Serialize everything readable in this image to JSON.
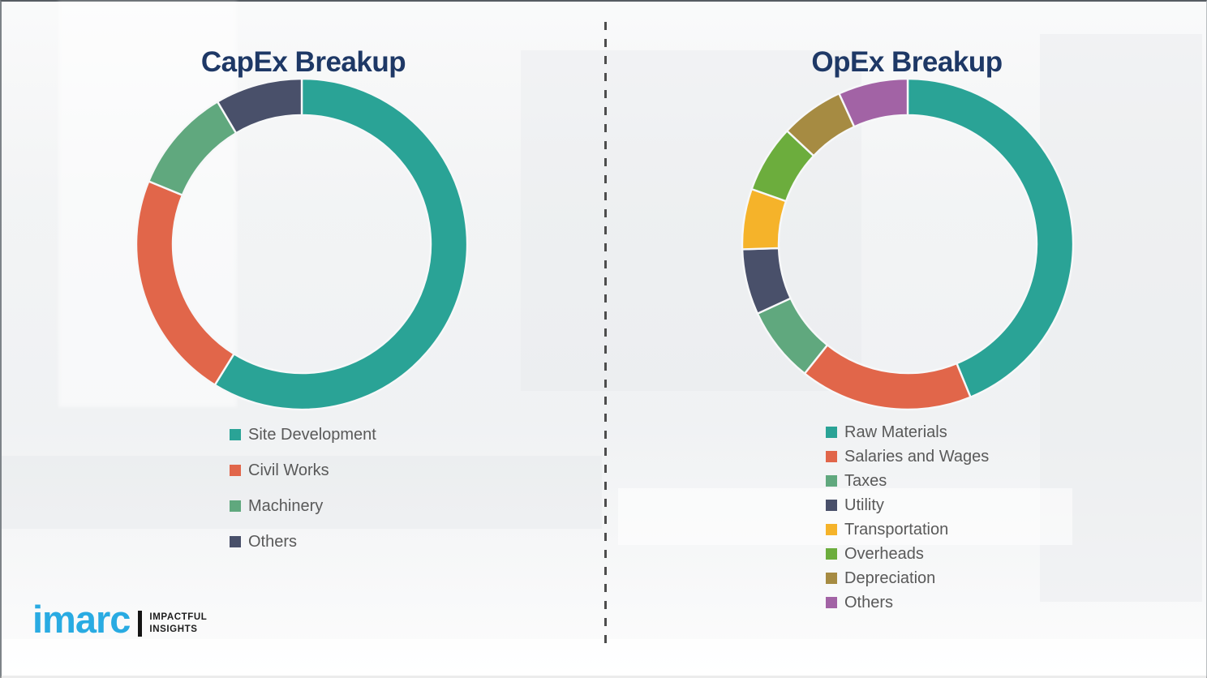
{
  "logo": {
    "brand": "imarc",
    "brand_color": "#29abe2",
    "tagline": [
      "IMPACTFUL",
      "INSIGHTS"
    ]
  },
  "divider_style": "vertical-dashed",
  "chart_data": [
    {
      "type": "pie",
      "style": "donut",
      "title": "CapEx Breakup",
      "title_color": "#1e3866",
      "legend_position": "below-left",
      "categories": [
        "Site Development",
        "Civil Works",
        "Machinery",
        "Others"
      ],
      "values": [
        58.8,
        22.4,
        10.3,
        8.5
      ],
      "colors": [
        "#2aa396",
        "#e1664a",
        "#60a87e",
        "#49506a"
      ]
    },
    {
      "type": "pie",
      "style": "donut",
      "title": "OpEx Breakup",
      "title_color": "#1e3866",
      "legend_position": "below-left",
      "categories": [
        "Raw Materials",
        "Salaries and Wages",
        "Taxes",
        "Utility",
        "Transportation",
        "Overheads",
        "Depreciation",
        "Others"
      ],
      "values": [
        43.8,
        16.9,
        7.4,
        6.4,
        5.9,
        6.6,
        6.2,
        6.8
      ],
      "colors": [
        "#2aa396",
        "#e1664a",
        "#60a87e",
        "#49506a",
        "#f5b32a",
        "#6cad3d",
        "#a68b42",
        "#a263a5"
      ]
    }
  ]
}
